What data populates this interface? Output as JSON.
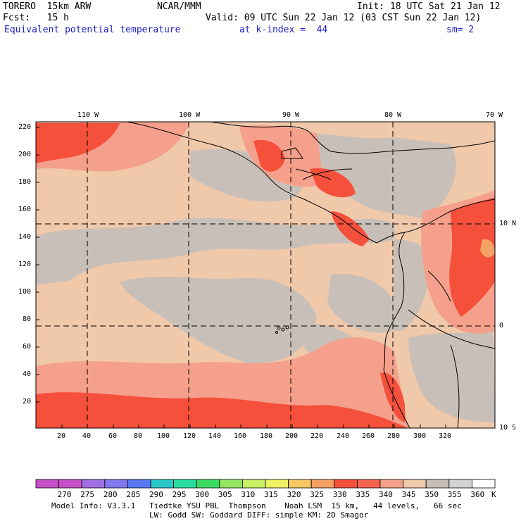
{
  "header": {
    "model": "TORERO  15km ARW",
    "center": "NCAR/MMM",
    "init": "Init: 18 UTC Sat 21 Jan 12",
    "fcst": "Fcst:   15 h",
    "valid": "Valid: 09 UTC Sun 22 Jan 12 (03 CST Sun 22 Jan 12)",
    "field": "Equivalent potential temperature",
    "level": "at k-index =  44",
    "smooth": "sm= 2"
  },
  "axes": {
    "top_lon": [
      "110 W",
      "100 W",
      "90 W",
      "80 W",
      "70 W"
    ],
    "right_lat": [
      "10 N",
      "0",
      "10 S"
    ],
    "x_ticks": [
      "20",
      "40",
      "60",
      "80",
      "100",
      "120",
      "140",
      "160",
      "180",
      "200",
      "220",
      "240",
      "260",
      "280",
      "300",
      "320"
    ],
    "y_ticks": [
      "220",
      "200",
      "180",
      "160",
      "140",
      "120",
      "100",
      "80",
      "60",
      "40",
      "20"
    ]
  },
  "colorbar": {
    "labels": [
      "270",
      "275",
      "280",
      "285",
      "290",
      "295",
      "300",
      "305",
      "310",
      "315",
      "320",
      "325",
      "330",
      "335",
      "340",
      "345",
      "350",
      "355",
      "360"
    ],
    "unit": "K",
    "colors": [
      "#c850c8",
      "#a070e0",
      "#8078f0",
      "#5a78f0",
      "#28c8c8",
      "#28dca0",
      "#3cdc64",
      "#96e664",
      "#c8f064",
      "#f0f064",
      "#f5c864",
      "#f5a064",
      "#f5503c",
      "#f56450",
      "#f5a08c",
      "#f0c8aa",
      "#c8c0b8",
      "#d2d2d2",
      "#ffffff"
    ]
  },
  "footer": {
    "line1": "Model Info: V3.3.1   Tiedtke YSU PBL  Thompson    Noah LSM  15 km,   44 levels,   66 sec",
    "line2": "LW: Godd SW: Goddard DIFF: simple KM: 2D Smagor"
  }
}
